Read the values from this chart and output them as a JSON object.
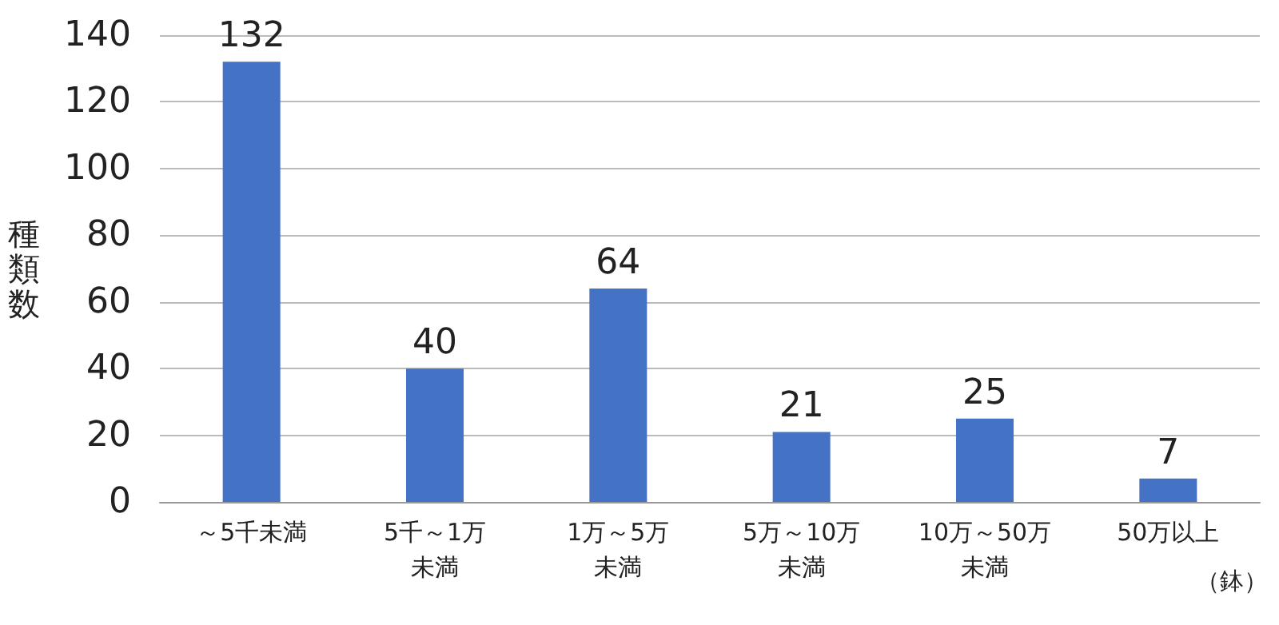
{
  "chart_data": {
    "type": "bar",
    "ylabel": "種類数",
    "xlabel": "（鉢）",
    "categories": [
      "～5千未満",
      "5千～1万未満",
      "1万～5万未満",
      "5万～10万未満",
      "10万～50万未満",
      "50万以上"
    ],
    "values": [
      132,
      40,
      64,
      21,
      25,
      7
    ],
    "color": "#4472c4",
    "data_labels": true,
    "ylim": [
      0,
      140
    ],
    "yticks": [
      0,
      20,
      40,
      60,
      80,
      100,
      120,
      140
    ],
    "grid": "y"
  }
}
